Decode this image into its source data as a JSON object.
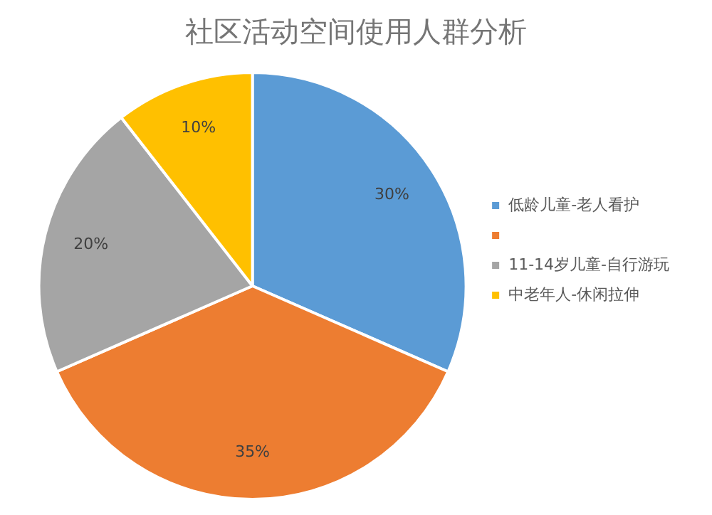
{
  "chart_data": {
    "type": "pie",
    "title": "社区活动空间使用人群分析",
    "categories": [
      "低龄儿童-老人看护",
      null,
      "11-14岁儿童-自行游玩",
      "中老年人-休闲拉伸"
    ],
    "values": [
      30,
      35,
      20,
      10
    ],
    "colors": [
      "#5b9bd5",
      "#ed7d31",
      "#a5a5a5",
      "#ffc000"
    ],
    "value_labels": [
      "30%",
      "35%",
      "20%",
      "10%"
    ],
    "legend": "right"
  }
}
